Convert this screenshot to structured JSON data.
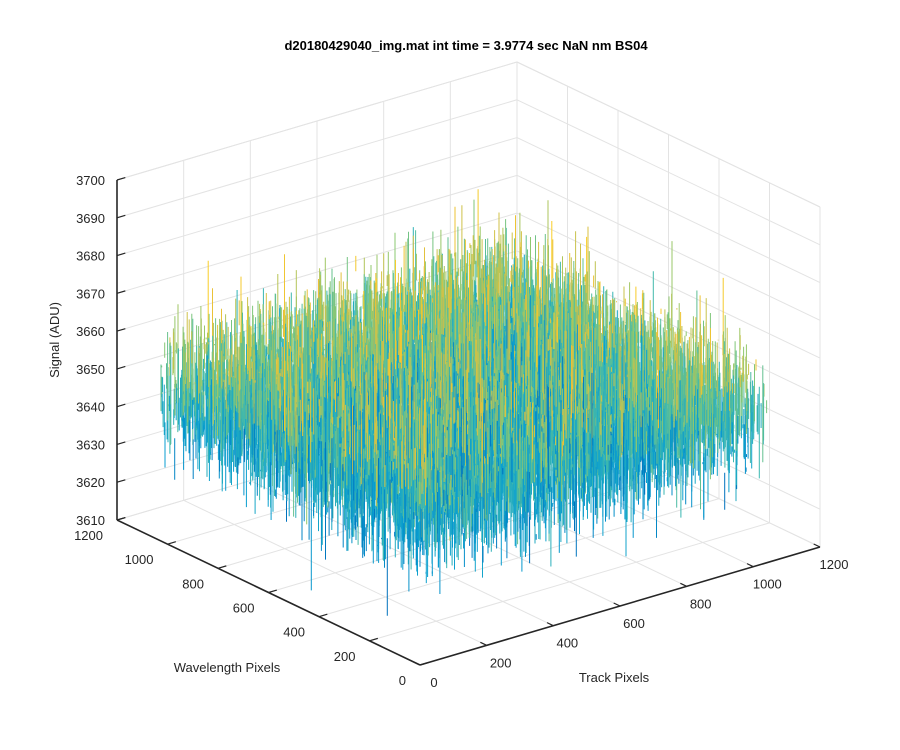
{
  "chart_data": {
    "type": "surface",
    "title": "d20180429040_img.mat int time = 3.9774 sec  NaN nm BS04",
    "xlabel": "Track Pixels",
    "ylabel": "Wavelength Pixels",
    "zlabel": "Signal (ADU)",
    "xlim": [
      0,
      1200
    ],
    "ylim": [
      0,
      1200
    ],
    "zlim": [
      3610,
      3700
    ],
    "xticks": [
      "0",
      "200",
      "400",
      "600",
      "800",
      "1000",
      "1200"
    ],
    "yticks": [
      "0",
      "200",
      "400",
      "600",
      "800",
      "1000",
      "1200"
    ],
    "zticks": [
      "3610",
      "3620",
      "3630",
      "3640",
      "3650",
      "3660",
      "3670",
      "3680",
      "3690",
      "3700"
    ],
    "data_extent": {
      "x": [
        0,
        1024
      ],
      "y": [
        0,
        1024
      ]
    },
    "z_mean": 3650,
    "z_range_observed": [
      3612,
      3700
    ],
    "grid": true,
    "colormap": "parula",
    "colors": {
      "low": "#0072bd",
      "mid_low": "#0a9fd0",
      "mid": "#3cb8b0",
      "mid_high": "#8cc870",
      "high": "#e8c03a",
      "axis": "#262626",
      "grid": "#e3e3e3"
    }
  }
}
